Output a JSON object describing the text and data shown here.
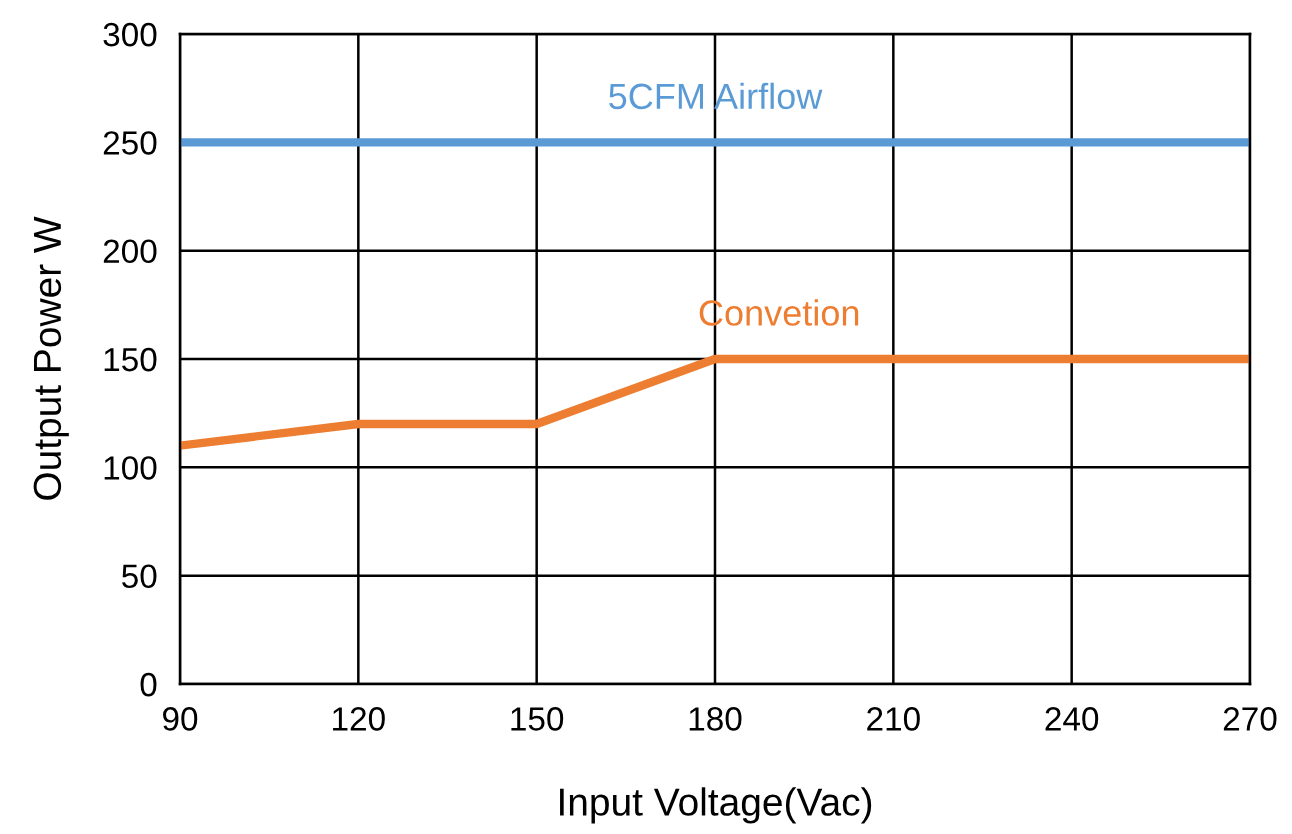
{
  "chart_data": {
    "type": "line",
    "xlabel": "Input Voltage(Vac)",
    "ylabel": "Output Power W",
    "series": [
      {
        "name": "5CFM Airflow",
        "color": "#5b9bd5",
        "x": [
          90,
          270
        ],
        "values": [
          250,
          250
        ]
      },
      {
        "name": "Convetion",
        "color": "#ed7d31",
        "x": [
          90,
          120,
          150,
          180,
          270
        ],
        "values": [
          110,
          120,
          120,
          150,
          150
        ]
      }
    ],
    "xlim": [
      90,
      270
    ],
    "xticks": [
      90,
      120,
      150,
      180,
      210,
      240,
      270
    ],
    "ylim": [
      0,
      300
    ],
    "yticks": [
      0,
      50,
      100,
      150,
      200,
      250,
      300
    ],
    "grid": true,
    "legend": false,
    "marker": "none",
    "line_style": "solid"
  }
}
